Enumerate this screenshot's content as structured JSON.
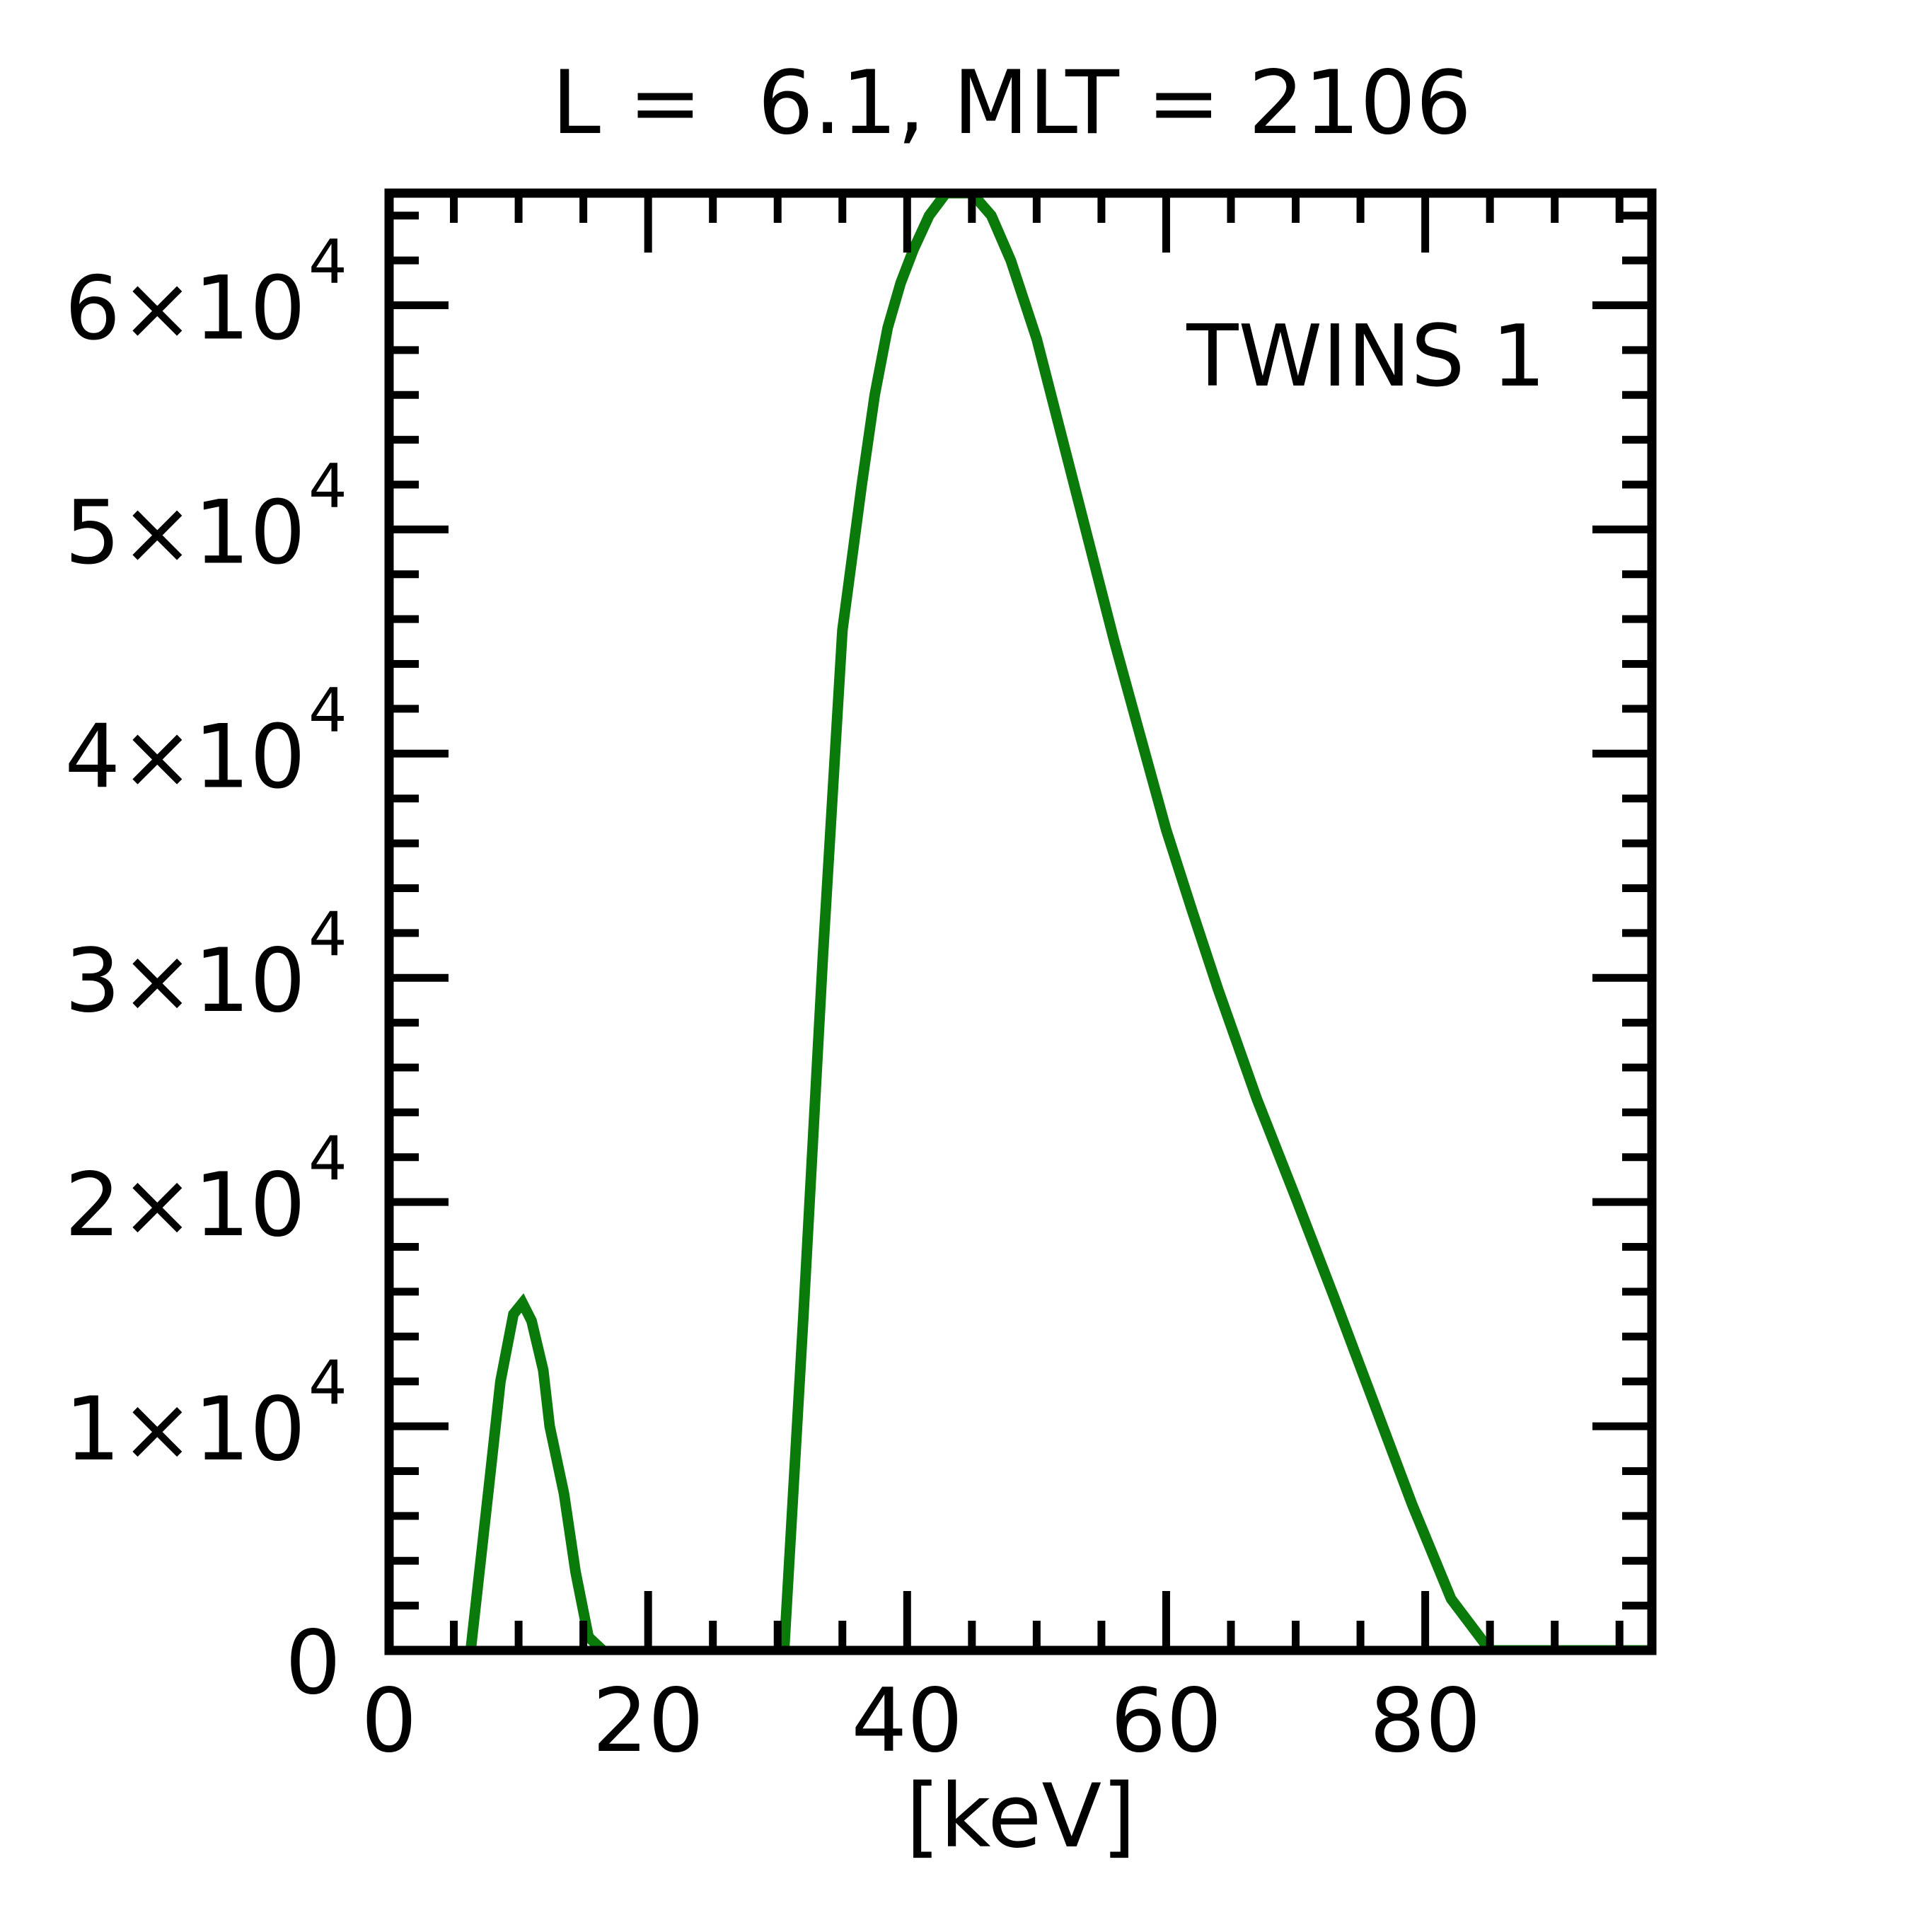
{
  "chart_data": {
    "type": "line",
    "title": "L =  6.1, MLT = 2106",
    "xlabel": "[keV]",
    "ylabel": "",
    "xlim": [
      0,
      97.5
    ],
    "ylim": [
      0,
      65000
    ],
    "x_ticks": [
      0,
      20,
      40,
      60,
      80
    ],
    "x_tick_labels": [
      "0",
      "20",
      "40",
      "60",
      "80"
    ],
    "y_ticks": [
      0,
      10000,
      20000,
      30000,
      40000,
      50000,
      60000
    ],
    "y_tick_labels": [
      {
        "mantissa": "0",
        "exponent": ""
      },
      {
        "mantissa": "1×10",
        "exponent": "4"
      },
      {
        "mantissa": "2×10",
        "exponent": "4"
      },
      {
        "mantissa": "3×10",
        "exponent": "4"
      },
      {
        "mantissa": "4×10",
        "exponent": "4"
      },
      {
        "mantissa": "5×10",
        "exponent": "4"
      },
      {
        "mantissa": "6×10",
        "exponent": "4"
      }
    ],
    "grid": false,
    "legend": "top-right",
    "series": [
      {
        "name": "TWINS 1",
        "color": "#0a7a0a",
        "segments": [
          {
            "x": [
              6.3,
              7.8,
              8.6,
              9.6,
              10.3,
              11.0,
              11.9,
              12.4,
              13.5,
              14.4,
              15.4,
              16.5
            ],
            "y": [
              0,
              7800,
              12000,
              15000,
              15500,
              14700,
              12500,
              10000,
              7000,
              3500,
              600,
              0
            ]
          },
          {
            "x": [
              30.5,
              32.0,
              33.5,
              35.0,
              36.5,
              37.5,
              38.5,
              39.5,
              40.5,
              41.7,
              43.0,
              44.5,
              45.0,
              46.5,
              48.0,
              50.0,
              52.0,
              54.0,
              56.0,
              58.0,
              60.0,
              62.0,
              64.0,
              67.0,
              70.0,
              73.0,
              76.0,
              79.0,
              82.0,
              85.0,
              88.0,
              91.0,
              94.0,
              96.5,
              97.5
            ],
            "y": [
              0,
              15000,
              31000,
              45500,
              52000,
              56000,
              59000,
              61000,
              62500,
              64000,
              65000,
              65000,
              65000,
              64000,
              62000,
              58500,
              54000,
              49500,
              45000,
              40800,
              36600,
              33000,
              29500,
              24600,
              20200,
              15700,
              11100,
              6500,
              2300,
              0,
              0,
              0,
              0,
              0,
              0
            ]
          }
        ]
      }
    ]
  }
}
